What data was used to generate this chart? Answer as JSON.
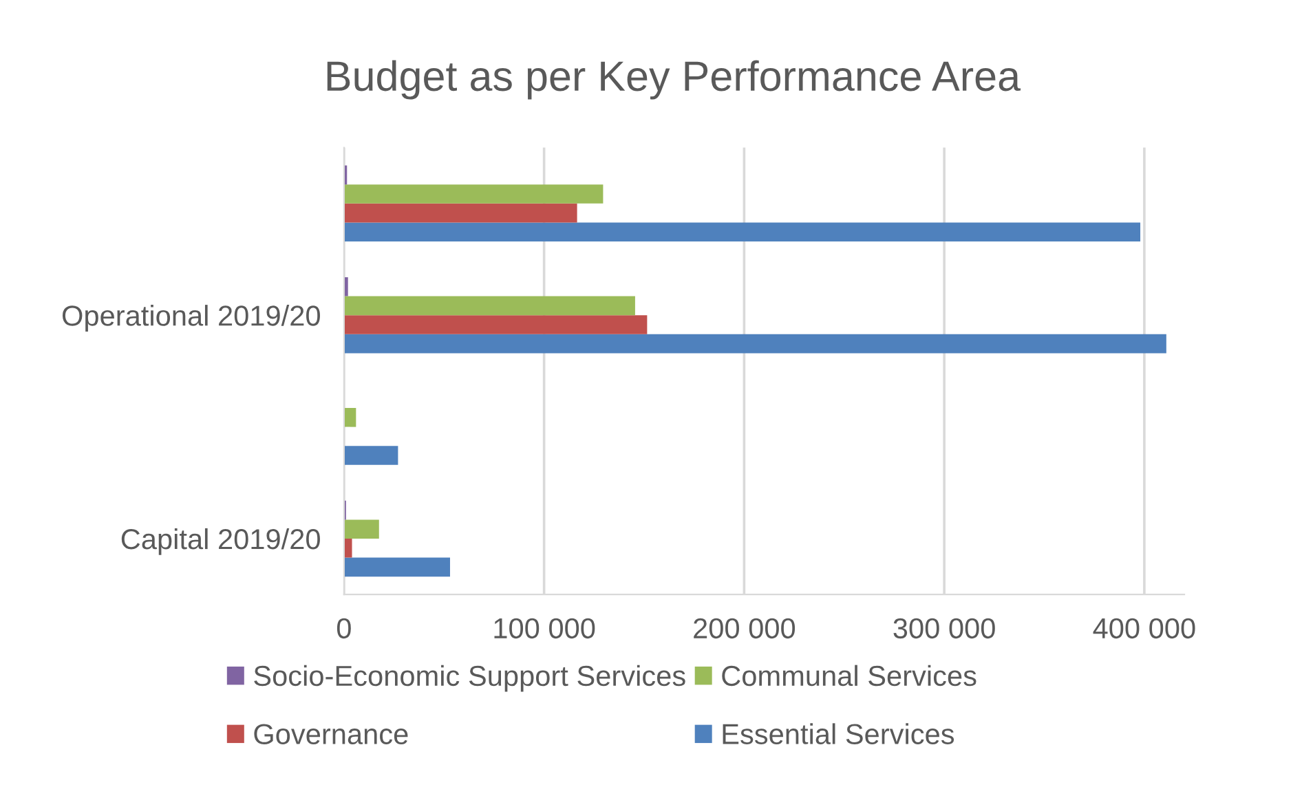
{
  "chart_data": {
    "type": "bar",
    "orientation": "horizontal",
    "title": "Budget as per Key Performance Area",
    "categories": [
      null,
      "Operational 2019/20",
      null,
      "Capital 2019/20"
    ],
    "series": [
      {
        "name": "Essential Services",
        "color": "#4f81bd",
        "values": [
          398000,
          411000,
          27000,
          53000
        ]
      },
      {
        "name": "Governance",
        "color": "#c0504d",
        "values": [
          116500,
          151500,
          null,
          4000
        ]
      },
      {
        "name": "Communal Services",
        "color": "#9bbb59",
        "values": [
          129500,
          145500,
          6000,
          17500
        ]
      },
      {
        "name": "Socio-Economic Support Services",
        "color": "#8064a2",
        "values": [
          1500,
          2000,
          null,
          1000
        ]
      }
    ],
    "xlim": [
      0,
      420000
    ],
    "xticks": [
      {
        "value": 0,
        "label": "0"
      },
      {
        "value": 100000,
        "label": "100 000"
      },
      {
        "value": 200000,
        "label": "200 000"
      },
      {
        "value": 300000,
        "label": "300 000"
      },
      {
        "value": 400000,
        "label": "400 000"
      }
    ],
    "grid": "x",
    "legend": "bottom"
  }
}
